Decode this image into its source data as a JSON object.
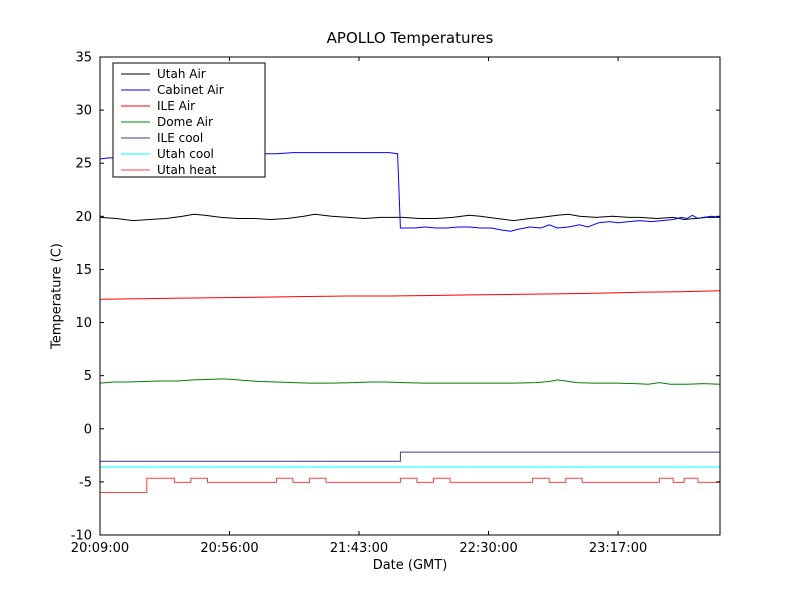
{
  "chart_data": {
    "type": "line",
    "title": "APOLLO Temperatures",
    "xlabel": "Date (GMT)",
    "ylabel": "Temperature (C)",
    "ylim": [
      -10,
      35
    ],
    "yticks": [
      -10,
      -5,
      0,
      5,
      10,
      15,
      20,
      25,
      30,
      35
    ],
    "x_unit": "minutes after 20:09:00 GMT",
    "xlim": [
      0,
      225
    ],
    "xticks": [
      {
        "t": 0,
        "label": "20:09:00"
      },
      {
        "t": 47,
        "label": "20:56:00"
      },
      {
        "t": 94,
        "label": "21:43:00"
      },
      {
        "t": 141,
        "label": "22:30:00"
      },
      {
        "t": 188,
        "label": "23:17:00"
      }
    ],
    "grid": false,
    "legend": {
      "position": "upper-left",
      "frame": true
    },
    "series": [
      {
        "name": "Utah Air",
        "color": "#000000",
        "points": [
          [
            0,
            19.9
          ],
          [
            6,
            19.8
          ],
          [
            12,
            19.6
          ],
          [
            18,
            19.7
          ],
          [
            24,
            19.8
          ],
          [
            30,
            20.0
          ],
          [
            34,
            20.2
          ],
          [
            38,
            20.1
          ],
          [
            44,
            19.9
          ],
          [
            50,
            19.8
          ],
          [
            56,
            19.8
          ],
          [
            62,
            19.7
          ],
          [
            68,
            19.8
          ],
          [
            74,
            20.0
          ],
          [
            78,
            20.2
          ],
          [
            84,
            20.0
          ],
          [
            90,
            19.9
          ],
          [
            96,
            19.8
          ],
          [
            102,
            19.9
          ],
          [
            110,
            19.9
          ],
          [
            116,
            19.8
          ],
          [
            122,
            19.8
          ],
          [
            128,
            19.9
          ],
          [
            134,
            20.1
          ],
          [
            138,
            20.0
          ],
          [
            144,
            19.8
          ],
          [
            150,
            19.6
          ],
          [
            156,
            19.8
          ],
          [
            160,
            19.9
          ],
          [
            166,
            20.1
          ],
          [
            170,
            20.2
          ],
          [
            174,
            20.0
          ],
          [
            180,
            19.9
          ],
          [
            186,
            20.0
          ],
          [
            192,
            19.9
          ],
          [
            196,
            19.9
          ],
          [
            202,
            19.8
          ],
          [
            208,
            19.9
          ],
          [
            212,
            19.7
          ],
          [
            216,
            19.8
          ],
          [
            220,
            19.9
          ],
          [
            225,
            19.9
          ]
        ]
      },
      {
        "name": "Cabinet Air",
        "color": "#0000ff",
        "points": [
          [
            0,
            25.4
          ],
          [
            3,
            25.5
          ],
          [
            8,
            25.5
          ],
          [
            14,
            25.6
          ],
          [
            20,
            25.6
          ],
          [
            26,
            25.6
          ],
          [
            32,
            25.7
          ],
          [
            38,
            25.7
          ],
          [
            44,
            25.7
          ],
          [
            50,
            25.8
          ],
          [
            54,
            25.9
          ],
          [
            58,
            25.9
          ],
          [
            64,
            25.9
          ],
          [
            70,
            26.0
          ],
          [
            76,
            26.0
          ],
          [
            82,
            26.0
          ],
          [
            88,
            26.0
          ],
          [
            94,
            26.0
          ],
          [
            100,
            26.0
          ],
          [
            105,
            26.0
          ],
          [
            108,
            25.9
          ],
          [
            109,
            18.9
          ],
          [
            114,
            18.9
          ],
          [
            118,
            19.0
          ],
          [
            122,
            18.9
          ],
          [
            126,
            18.9
          ],
          [
            130,
            19.0
          ],
          [
            134,
            19.0
          ],
          [
            138,
            18.9
          ],
          [
            142,
            18.9
          ],
          [
            146,
            18.7
          ],
          [
            149,
            18.6
          ],
          [
            152,
            18.8
          ],
          [
            156,
            19.0
          ],
          [
            160,
            18.9
          ],
          [
            163,
            19.2
          ],
          [
            166,
            18.9
          ],
          [
            170,
            19.0
          ],
          [
            174,
            19.2
          ],
          [
            177,
            19.0
          ],
          [
            181,
            19.4
          ],
          [
            185,
            19.5
          ],
          [
            188,
            19.4
          ],
          [
            192,
            19.5
          ],
          [
            196,
            19.6
          ],
          [
            200,
            19.5
          ],
          [
            204,
            19.6
          ],
          [
            208,
            19.7
          ],
          [
            211,
            19.9
          ],
          [
            213,
            19.8
          ],
          [
            215,
            20.1
          ],
          [
            217,
            19.8
          ],
          [
            219,
            19.9
          ],
          [
            222,
            20.0
          ],
          [
            225,
            19.9
          ]
        ]
      },
      {
        "name": "ILE Air",
        "color": "#ff0000",
        "points": [
          [
            0,
            12.2
          ],
          [
            15,
            12.25
          ],
          [
            30,
            12.3
          ],
          [
            45,
            12.35
          ],
          [
            60,
            12.4
          ],
          [
            75,
            12.45
          ],
          [
            90,
            12.5
          ],
          [
            105,
            12.5
          ],
          [
            120,
            12.55
          ],
          [
            135,
            12.6
          ],
          [
            150,
            12.65
          ],
          [
            165,
            12.7
          ],
          [
            180,
            12.75
          ],
          [
            195,
            12.85
          ],
          [
            210,
            12.9
          ],
          [
            218,
            12.95
          ],
          [
            225,
            13.0
          ]
        ]
      },
      {
        "name": "Dome Air",
        "color": "#008000",
        "points": [
          [
            0,
            4.3
          ],
          [
            5,
            4.4
          ],
          [
            10,
            4.4
          ],
          [
            16,
            4.45
          ],
          [
            22,
            4.5
          ],
          [
            28,
            4.5
          ],
          [
            34,
            4.6
          ],
          [
            40,
            4.65
          ],
          [
            44,
            4.7
          ],
          [
            48,
            4.65
          ],
          [
            52,
            4.55
          ],
          [
            58,
            4.45
          ],
          [
            64,
            4.4
          ],
          [
            70,
            4.35
          ],
          [
            76,
            4.3
          ],
          [
            84,
            4.3
          ],
          [
            92,
            4.35
          ],
          [
            98,
            4.4
          ],
          [
            104,
            4.4
          ],
          [
            110,
            4.35
          ],
          [
            118,
            4.3
          ],
          [
            126,
            4.3
          ],
          [
            134,
            4.3
          ],
          [
            142,
            4.3
          ],
          [
            150,
            4.3
          ],
          [
            158,
            4.35
          ],
          [
            163,
            4.45
          ],
          [
            166,
            4.6
          ],
          [
            169,
            4.5
          ],
          [
            173,
            4.35
          ],
          [
            179,
            4.3
          ],
          [
            187,
            4.3
          ],
          [
            194,
            4.25
          ],
          [
            199,
            4.2
          ],
          [
            203,
            4.35
          ],
          [
            207,
            4.2
          ],
          [
            213,
            4.2
          ],
          [
            219,
            4.25
          ],
          [
            225,
            4.2
          ]
        ]
      },
      {
        "name": "ILE cool",
        "color": "#3b3b8c",
        "points": [
          [
            0,
            -3.05
          ],
          [
            109,
            -3.05
          ],
          [
            109,
            -2.2
          ],
          [
            225,
            -2.2
          ]
        ]
      },
      {
        "name": "Utah cool",
        "color": "#00ffff",
        "points": [
          [
            0,
            -3.6
          ],
          [
            225,
            -3.6
          ]
        ]
      },
      {
        "name": "Utah heat",
        "color": "#ff4040",
        "points": [
          [
            0,
            -6.0
          ],
          [
            17,
            -6.0
          ],
          [
            17,
            -4.65
          ],
          [
            27,
            -4.65
          ],
          [
            27,
            -5.05
          ],
          [
            33,
            -5.05
          ],
          [
            33,
            -4.65
          ],
          [
            39,
            -4.65
          ],
          [
            39,
            -5.05
          ],
          [
            64,
            -5.05
          ],
          [
            64,
            -4.65
          ],
          [
            70,
            -4.65
          ],
          [
            70,
            -5.05
          ],
          [
            76,
            -5.05
          ],
          [
            76,
            -4.65
          ],
          [
            82,
            -4.65
          ],
          [
            82,
            -5.05
          ],
          [
            109,
            -5.05
          ],
          [
            109,
            -4.65
          ],
          [
            115,
            -4.65
          ],
          [
            115,
            -5.05
          ],
          [
            121,
            -5.05
          ],
          [
            121,
            -4.65
          ],
          [
            127,
            -4.65
          ],
          [
            127,
            -5.05
          ],
          [
            157,
            -5.05
          ],
          [
            157,
            -4.65
          ],
          [
            163,
            -4.65
          ],
          [
            163,
            -5.05
          ],
          [
            169,
            -5.05
          ],
          [
            169,
            -4.65
          ],
          [
            175,
            -4.65
          ],
          [
            175,
            -5.05
          ],
          [
            203,
            -5.05
          ],
          [
            203,
            -4.65
          ],
          [
            208,
            -4.65
          ],
          [
            208,
            -5.05
          ],
          [
            212,
            -5.05
          ],
          [
            212,
            -4.65
          ],
          [
            217,
            -4.65
          ],
          [
            217,
            -5.05
          ],
          [
            225,
            -5.05
          ]
        ]
      }
    ]
  }
}
